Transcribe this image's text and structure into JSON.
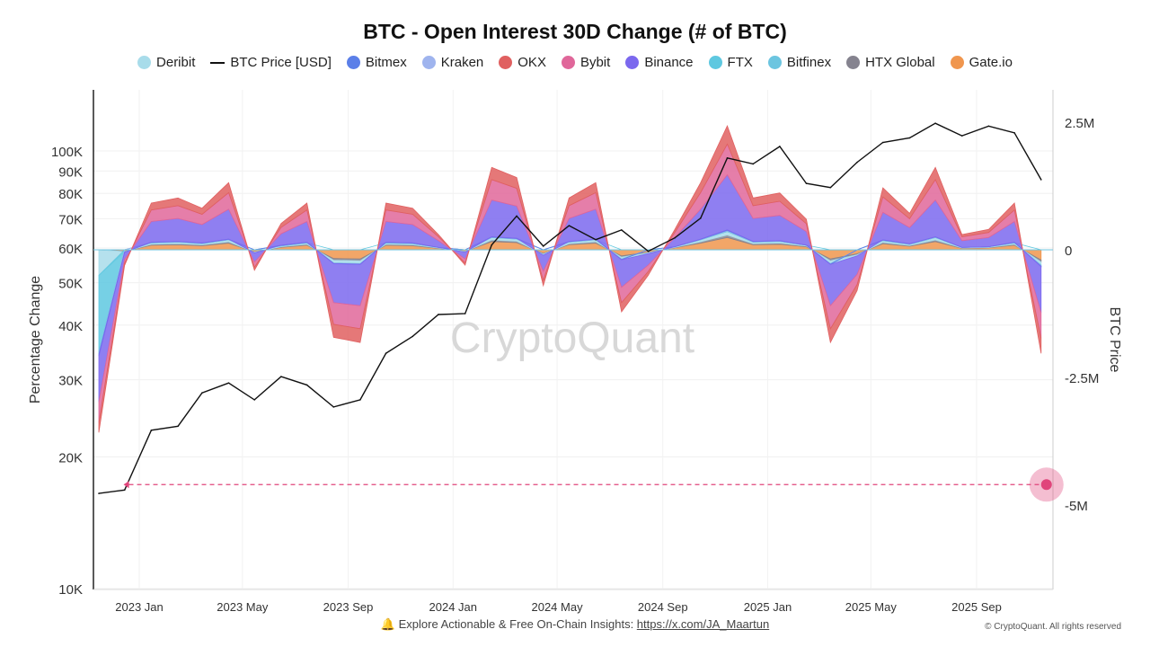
{
  "chart_data": {
    "type": "area",
    "title": "BTC - Open Interest 30D Change (# of BTC)",
    "ylabel_left": "Percentage Change",
    "ylabel_right": "BTC Price",
    "left_axis": {
      "scale": "log",
      "range": [
        10000,
        160000
      ],
      "ticks": [
        "10K",
        "20K",
        "30K",
        "40K",
        "50K",
        "60K",
        "70K",
        "80K",
        "90K",
        "100K"
      ],
      "tick_values": [
        10000,
        20000,
        30000,
        40000,
        50000,
        60000,
        70000,
        80000,
        90000,
        100000
      ]
    },
    "right_axis": {
      "scale": "linear",
      "range": [
        -6400000,
        3200000
      ],
      "ticks": [
        "2.5M",
        "0",
        "-2.5M",
        "-5M"
      ],
      "tick_values": [
        2500000,
        0,
        -2500000,
        -5000000
      ]
    },
    "x_ticks": [
      "2023 Jan",
      "2023 May",
      "2023 Sep",
      "2024 Jan",
      "2024 May",
      "2024 Sep",
      "2025 Jan",
      "2025 May",
      "2025 Sep"
    ],
    "x_tick_dates": [
      "2023-01-01",
      "2023-05-01",
      "2023-09-01",
      "2024-01-01",
      "2024-05-01",
      "2024-09-01",
      "2025-01-01",
      "2025-05-01",
      "2025-09-01"
    ],
    "x_range": [
      "2022-11-10",
      "2025-11-23"
    ],
    "grid": true,
    "legend_position": "top",
    "dates": [
      "2022-11",
      "2022-12",
      "2023-01",
      "2023-02",
      "2023-03",
      "2023-04",
      "2023-05",
      "2023-06",
      "2023-07",
      "2023-08",
      "2023-09",
      "2023-10",
      "2023-11",
      "2023-12",
      "2024-01",
      "2024-02",
      "2024-03",
      "2024-04",
      "2024-05",
      "2024-06",
      "2024-07",
      "2024-08",
      "2024-09",
      "2024-10",
      "2024-11",
      "2024-12",
      "2025-01",
      "2025-02",
      "2025-03",
      "2025-04",
      "2025-05",
      "2025-06",
      "2025-07",
      "2025-08",
      "2025-09",
      "2025-10",
      "2025-11"
    ],
    "price_series": {
      "name": "BTC Price [USD]",
      "color": "#111111",
      "values": [
        16500,
        16800,
        23000,
        23500,
        28000,
        29500,
        27000,
        30500,
        29200,
        26000,
        27000,
        34500,
        37700,
        42300,
        42500,
        61000,
        71000,
        60600,
        67500,
        62700,
        66000,
        59000,
        63300,
        70200,
        96400,
        93400,
        102400,
        84300,
        82500,
        94200,
        104600,
        107100,
        115700,
        108300,
        114000,
        110000,
        86000
      ]
    },
    "series": [
      {
        "name": "Gate.io",
        "color": "#f0964e",
        "values": [
          0,
          -30,
          90,
          100,
          80,
          130,
          -40,
          50,
          90,
          -170,
          -180,
          90,
          80,
          30,
          -30,
          160,
          140,
          -70,
          100,
          130,
          -120,
          -50,
          40,
          130,
          240,
          100,
          110,
          60,
          -180,
          -80,
          120,
          70,
          160,
          30,
          40,
          90,
          -200
        ]
      },
      {
        "name": "HTX Global",
        "color": "#85838f",
        "values": [
          0,
          -6,
          18,
          20,
          16,
          26,
          -8,
          10,
          18,
          -34,
          -36,
          18,
          16,
          6,
          -6,
          32,
          28,
          -14,
          20,
          26,
          -24,
          -10,
          8,
          26,
          48,
          20,
          22,
          12,
          -36,
          -16,
          24,
          14,
          32,
          6,
          8,
          18,
          -40
        ]
      },
      {
        "name": "Deribit",
        "color": "#a8dcea",
        "values": [
          -500,
          -9,
          27,
          30,
          24,
          39,
          -12,
          15,
          27,
          -51,
          -54,
          27,
          24,
          9,
          -9,
          48,
          42,
          -21,
          30,
          39,
          -36,
          -15,
          12,
          39,
          72,
          30,
          33,
          18,
          -54,
          -24,
          36,
          21,
          48,
          9,
          12,
          27,
          -60
        ]
      },
      {
        "name": "FTX",
        "color": "#5ec8e0",
        "values": [
          -1500,
          0,
          0,
          0,
          0,
          0,
          0,
          0,
          0,
          0,
          0,
          0,
          0,
          0,
          0,
          0,
          0,
          0,
          0,
          0,
          0,
          0,
          0,
          0,
          0,
          0,
          0,
          0,
          0,
          0,
          0,
          0,
          0,
          0,
          0,
          0,
          0
        ]
      },
      {
        "name": "Bitfinex",
        "color": "#6cc5e0",
        "values": [
          -20,
          0,
          5,
          5,
          5,
          5,
          0,
          5,
          5,
          -5,
          -5,
          5,
          5,
          0,
          0,
          5,
          5,
          0,
          5,
          5,
          -5,
          0,
          0,
          5,
          10,
          5,
          5,
          0,
          -5,
          0,
          5,
          5,
          5,
          0,
          0,
          5,
          -10
        ]
      },
      {
        "name": "Kraken",
        "color": "#9fb4ee",
        "values": [
          -20,
          0,
          5,
          5,
          5,
          5,
          0,
          5,
          5,
          -5,
          -5,
          5,
          5,
          0,
          0,
          5,
          5,
          0,
          5,
          5,
          -5,
          0,
          0,
          5,
          10,
          5,
          5,
          0,
          -5,
          0,
          5,
          5,
          5,
          0,
          0,
          5,
          -10
        ]
      },
      {
        "name": "Bitmex",
        "color": "#5b7fe8",
        "values": [
          -40,
          -5,
          5,
          5,
          5,
          5,
          0,
          5,
          5,
          -5,
          -5,
          5,
          5,
          0,
          0,
          5,
          5,
          0,
          5,
          5,
          -5,
          0,
          0,
          5,
          10,
          5,
          5,
          0,
          -5,
          0,
          5,
          5,
          5,
          0,
          0,
          5,
          -10
        ]
      },
      {
        "name": "Binance",
        "color": "#7b68ee",
        "values": [
          -900,
          -135,
          405,
          450,
          360,
          585,
          -180,
          225,
          405,
          -765,
          -810,
          405,
          360,
          135,
          -135,
          720,
          630,
          -315,
          450,
          585,
          -540,
          -225,
          180,
          585,
          1080,
          450,
          495,
          270,
          -810,
          -360,
          540,
          315,
          720,
          135,
          180,
          405,
          -900
        ]
      },
      {
        "name": "Bybit",
        "color": "#e0679a",
        "values": [
          -400,
          -75,
          225,
          250,
          200,
          325,
          -100,
          125,
          225,
          -425,
          -450,
          225,
          200,
          75,
          -75,
          400,
          350,
          -175,
          250,
          325,
          -300,
          -125,
          100,
          325,
          600,
          250,
          275,
          150,
          -450,
          -200,
          300,
          175,
          400,
          75,
          100,
          225,
          -500
        ]
      },
      {
        "name": "OKX",
        "color": "#e06060",
        "values": [
          -200,
          -45,
          135,
          150,
          120,
          195,
          -60,
          75,
          135,
          -255,
          -270,
          135,
          120,
          45,
          -45,
          240,
          210,
          -105,
          150,
          195,
          -180,
          -75,
          60,
          195,
          360,
          150,
          165,
          90,
          -270,
          -120,
          180,
          105,
          240,
          45,
          60,
          135,
          -300
        ]
      }
    ],
    "series_units": "thousand BTC",
    "annotation": {
      "type": "dashed-line-with-marker",
      "value": -4600000,
      "from_date": "2022-12-20",
      "color": "#e0457b"
    }
  },
  "legend": [
    {
      "name": "Deribit",
      "color": "#a8dcea",
      "type": "dot"
    },
    {
      "name": "BTC Price [USD]",
      "color": "#111111",
      "type": "line"
    },
    {
      "name": "Bitmex",
      "color": "#5b7fe8",
      "type": "dot"
    },
    {
      "name": "Kraken",
      "color": "#9fb4ee",
      "type": "dot"
    },
    {
      "name": "OKX",
      "color": "#e06060",
      "type": "dot"
    },
    {
      "name": "Bybit",
      "color": "#e0679a",
      "type": "dot"
    },
    {
      "name": "Binance",
      "color": "#7b68ee",
      "type": "dot"
    },
    {
      "name": "FTX",
      "color": "#5ec8e0",
      "type": "dot"
    },
    {
      "name": "Bitfinex",
      "color": "#6cc5e0",
      "type": "dot"
    },
    {
      "name": "HTX Global",
      "color": "#85838f",
      "type": "dot"
    },
    {
      "name": "Gate.io",
      "color": "#f0964e",
      "type": "dot"
    }
  ],
  "watermark": "CryptoQuant",
  "footer": {
    "text": "Explore Actionable & Free On-Chain Insights: ",
    "link": "https://x.com/JA_Maartun",
    "icon": "bell-icon"
  },
  "copyright": "© CryptoQuant. All rights reserved"
}
